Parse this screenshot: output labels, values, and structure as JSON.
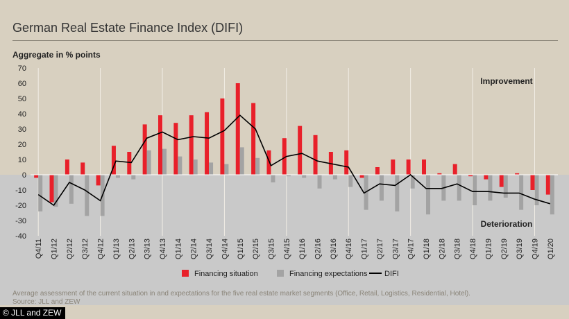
{
  "header": {
    "title": "German Real Estate Finance Index (DIFI)",
    "subtitle": "Aggregate in % points"
  },
  "footer": {
    "note": "Average assessment of the current situation in and expectations for the five real estate market segments (Office, Retail, Logistics, Residential, Hotel).",
    "source": "Source: JLL and ZEW",
    "copyright": "© JLL and ZEW"
  },
  "colors": {
    "financing_situation": "#e8202a",
    "financing_expectations": "#a3a3a3",
    "difi": "#000000",
    "upper_background": "#d8d0c0",
    "lower_background": "#c9c9c9"
  },
  "chart_data": {
    "type": "bar",
    "title": "German Real Estate Finance Index (DIFI)",
    "ylabel": "Aggregate in % points",
    "ylim": [
      -40,
      70
    ],
    "yticks": [
      70,
      60,
      50,
      40,
      30,
      20,
      10,
      0,
      -10,
      -20,
      -30,
      -40
    ],
    "grid": "vertical lines at each Q4",
    "legend_placement": "bottom-center",
    "annotations": [
      "Improvement",
      "Deterioration"
    ],
    "categories": [
      "Q4/11",
      "Q1/12",
      "Q2/12",
      "Q3/12",
      "Q4/12",
      "Q1/13",
      "Q2/13",
      "Q3/13",
      "Q4/13",
      "Q1/14",
      "Q2/14",
      "Q3/14",
      "Q4/14",
      "Q1/15",
      "Q2/15",
      "Q3/15",
      "Q4/15",
      "Q1/16",
      "Q2/16",
      "Q3/16",
      "Q4/16",
      "Q1/17",
      "Q2/17",
      "Q3/17",
      "Q4/17",
      "Q1/18",
      "Q2/18",
      "Q3/18",
      "Q4/18",
      "Q1/19",
      "Q2/19",
      "Q3/19",
      "Q4/19",
      "Q1/20"
    ],
    "series": [
      {
        "name": "Financing situation",
        "kind": "bar",
        "values": [
          -2,
          -18,
          10,
          8,
          -7,
          19,
          15,
          33,
          39,
          34,
          39,
          41,
          50,
          60,
          47,
          16,
          24,
          32,
          26,
          15,
          16,
          -2,
          5,
          10,
          10,
          10,
          1,
          7,
          -1,
          -3,
          -8,
          1,
          -10,
          -13
        ]
      },
      {
        "name": "Financing expectations",
        "kind": "bar",
        "values": [
          -24,
          -21,
          -19,
          -27,
          -27,
          -2,
          -3,
          16,
          17,
          12,
          10,
          8,
          7,
          18,
          11,
          -5,
          -1,
          -2,
          -9,
          -3,
          -8,
          -23,
          -17,
          -24,
          -9,
          -26,
          -17,
          -17,
          -20,
          -17,
          -15,
          -23,
          -20,
          -26
        ]
      },
      {
        "name": "DIFI",
        "kind": "line",
        "values": [
          -13,
          -20,
          -5,
          -10,
          -17,
          9,
          8,
          24,
          28,
          23,
          25,
          24,
          29,
          39,
          30,
          6,
          12,
          14,
          9,
          7,
          5,
          -12,
          -6,
          -7,
          0,
          -9,
          -9,
          -6,
          -11,
          -11,
          -12,
          -12,
          -16,
          -19
        ]
      }
    ]
  }
}
